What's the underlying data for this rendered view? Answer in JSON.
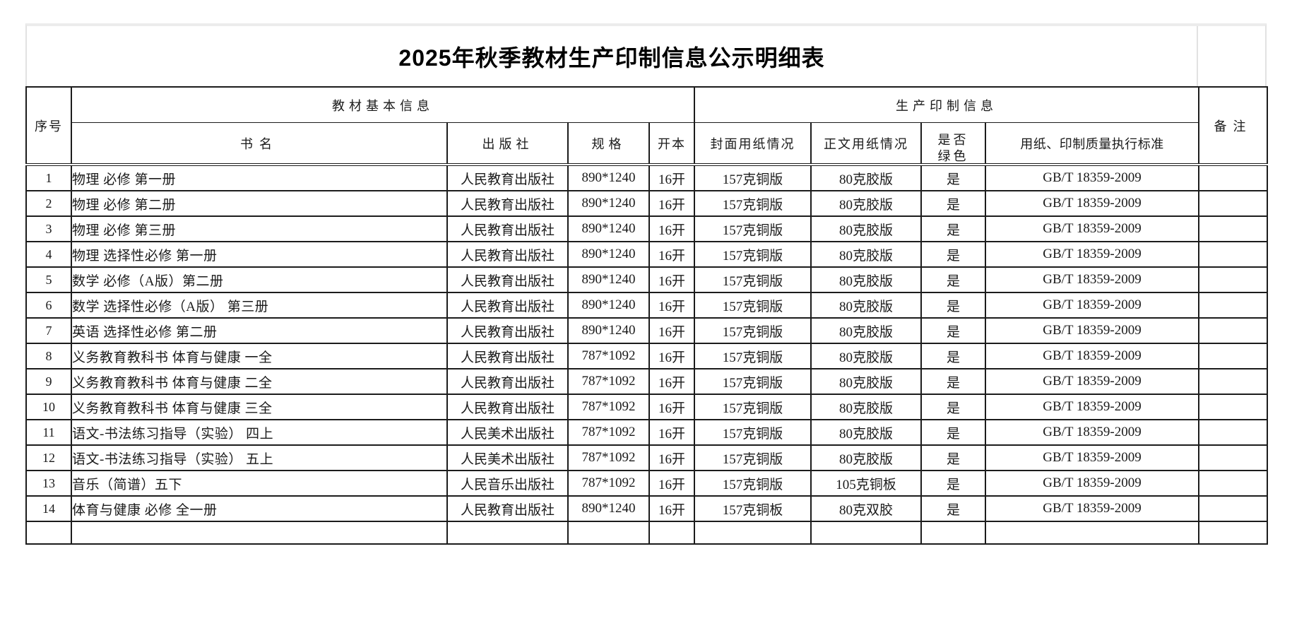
{
  "title": "2025年秋季教材生产印制信息公示明细表",
  "colors": {
    "grid_border_dark": "#1c1c1c",
    "title_border_light": "#e2e2e2",
    "background": "#ffffff",
    "text": "#1a1a1a"
  },
  "table": {
    "header": {
      "serial": "序号",
      "group_basic": "教材基本信息",
      "group_production": "生产印制信息",
      "remark": "备注",
      "sub": [
        "书名",
        "出版社",
        "规格",
        "开本",
        "封面用纸情况",
        "正文用纸情况",
        "用纸、印制质量执行标准"
      ],
      "green_line1": "是否",
      "green_line2": "绿色"
    },
    "rows": [
      {
        "no": "1",
        "name": "物理 必修 第一册",
        "publisher": "人民教育出版社",
        "spec": "890*1240",
        "format": "16开",
        "cover": "157克铜版",
        "body": "80克胶版",
        "green": "是",
        "standard": "GB/T 18359-2009",
        "remark": ""
      },
      {
        "no": "2",
        "name": "物理 必修 第二册",
        "publisher": "人民教育出版社",
        "spec": "890*1240",
        "format": "16开",
        "cover": "157克铜版",
        "body": "80克胶版",
        "green": "是",
        "standard": "GB/T 18359-2009",
        "remark": ""
      },
      {
        "no": "3",
        "name": "物理 必修 第三册",
        "publisher": "人民教育出版社",
        "spec": "890*1240",
        "format": "16开",
        "cover": "157克铜版",
        "body": "80克胶版",
        "green": "是",
        "standard": "GB/T 18359-2009",
        "remark": ""
      },
      {
        "no": "4",
        "name": "物理 选择性必修 第一册",
        "publisher": "人民教育出版社",
        "spec": "890*1240",
        "format": "16开",
        "cover": "157克铜版",
        "body": "80克胶版",
        "green": "是",
        "standard": "GB/T 18359-2009",
        "remark": ""
      },
      {
        "no": "5",
        "name": "数学 必修（A版）第二册",
        "publisher": "人民教育出版社",
        "spec": "890*1240",
        "format": "16开",
        "cover": "157克铜版",
        "body": "80克胶版",
        "green": "是",
        "standard": "GB/T 18359-2009",
        "remark": ""
      },
      {
        "no": "6",
        "name": "数学 选择性必修（A版） 第三册",
        "publisher": "人民教育出版社",
        "spec": "890*1240",
        "format": "16开",
        "cover": "157克铜版",
        "body": "80克胶版",
        "green": "是",
        "standard": "GB/T 18359-2009",
        "remark": ""
      },
      {
        "no": "7",
        "name": "英语 选择性必修 第二册",
        "publisher": "人民教育出版社",
        "spec": "890*1240",
        "format": "16开",
        "cover": "157克铜版",
        "body": "80克胶版",
        "green": "是",
        "standard": "GB/T 18359-2009",
        "remark": ""
      },
      {
        "no": "8",
        "name": "义务教育教科书 体育与健康 一全",
        "publisher": "人民教育出版社",
        "spec": "787*1092",
        "format": "16开",
        "cover": "157克铜版",
        "body": "80克胶版",
        "green": "是",
        "standard": "GB/T 18359-2009",
        "remark": ""
      },
      {
        "no": "9",
        "name": "义务教育教科书 体育与健康 二全",
        "publisher": "人民教育出版社",
        "spec": "787*1092",
        "format": "16开",
        "cover": "157克铜版",
        "body": "80克胶版",
        "green": "是",
        "standard": "GB/T 18359-2009",
        "remark": ""
      },
      {
        "no": "10",
        "name": "义务教育教科书 体育与健康 三全",
        "publisher": "人民教育出版社",
        "spec": "787*1092",
        "format": "16开",
        "cover": "157克铜版",
        "body": "80克胶版",
        "green": "是",
        "standard": "GB/T 18359-2009",
        "remark": ""
      },
      {
        "no": "11",
        "name": "语文-书法练习指导（实验） 四上",
        "publisher": "人民美术出版社",
        "spec": "787*1092",
        "format": "16开",
        "cover": "157克铜版",
        "body": "80克胶版",
        "green": "是",
        "standard": "GB/T 18359-2009",
        "remark": ""
      },
      {
        "no": "12",
        "name": "语文-书法练习指导（实验） 五上",
        "publisher": "人民美术出版社",
        "spec": "787*1092",
        "format": "16开",
        "cover": "157克铜版",
        "body": "80克胶版",
        "green": "是",
        "standard": "GB/T 18359-2009",
        "remark": ""
      },
      {
        "no": "13",
        "name": "音乐（简谱）五下",
        "publisher": "人民音乐出版社",
        "spec": "787*1092",
        "format": "16开",
        "cover": "157克铜版",
        "body": "105克铜板",
        "green": "是",
        "standard": "GB/T 18359-2009",
        "remark": ""
      },
      {
        "no": "14",
        "name": "体育与健康 必修 全一册",
        "publisher": "人民教育出版社",
        "spec": "890*1240",
        "format": "16开",
        "cover": "157克铜板",
        "body": "80克双胶",
        "green": "是",
        "standard": "GB/T 18359-2009",
        "remark": ""
      },
      {
        "no": "",
        "name": "",
        "publisher": "",
        "spec": "",
        "format": "",
        "cover": "",
        "body": "",
        "green": "",
        "standard": "",
        "remark": ""
      }
    ]
  }
}
